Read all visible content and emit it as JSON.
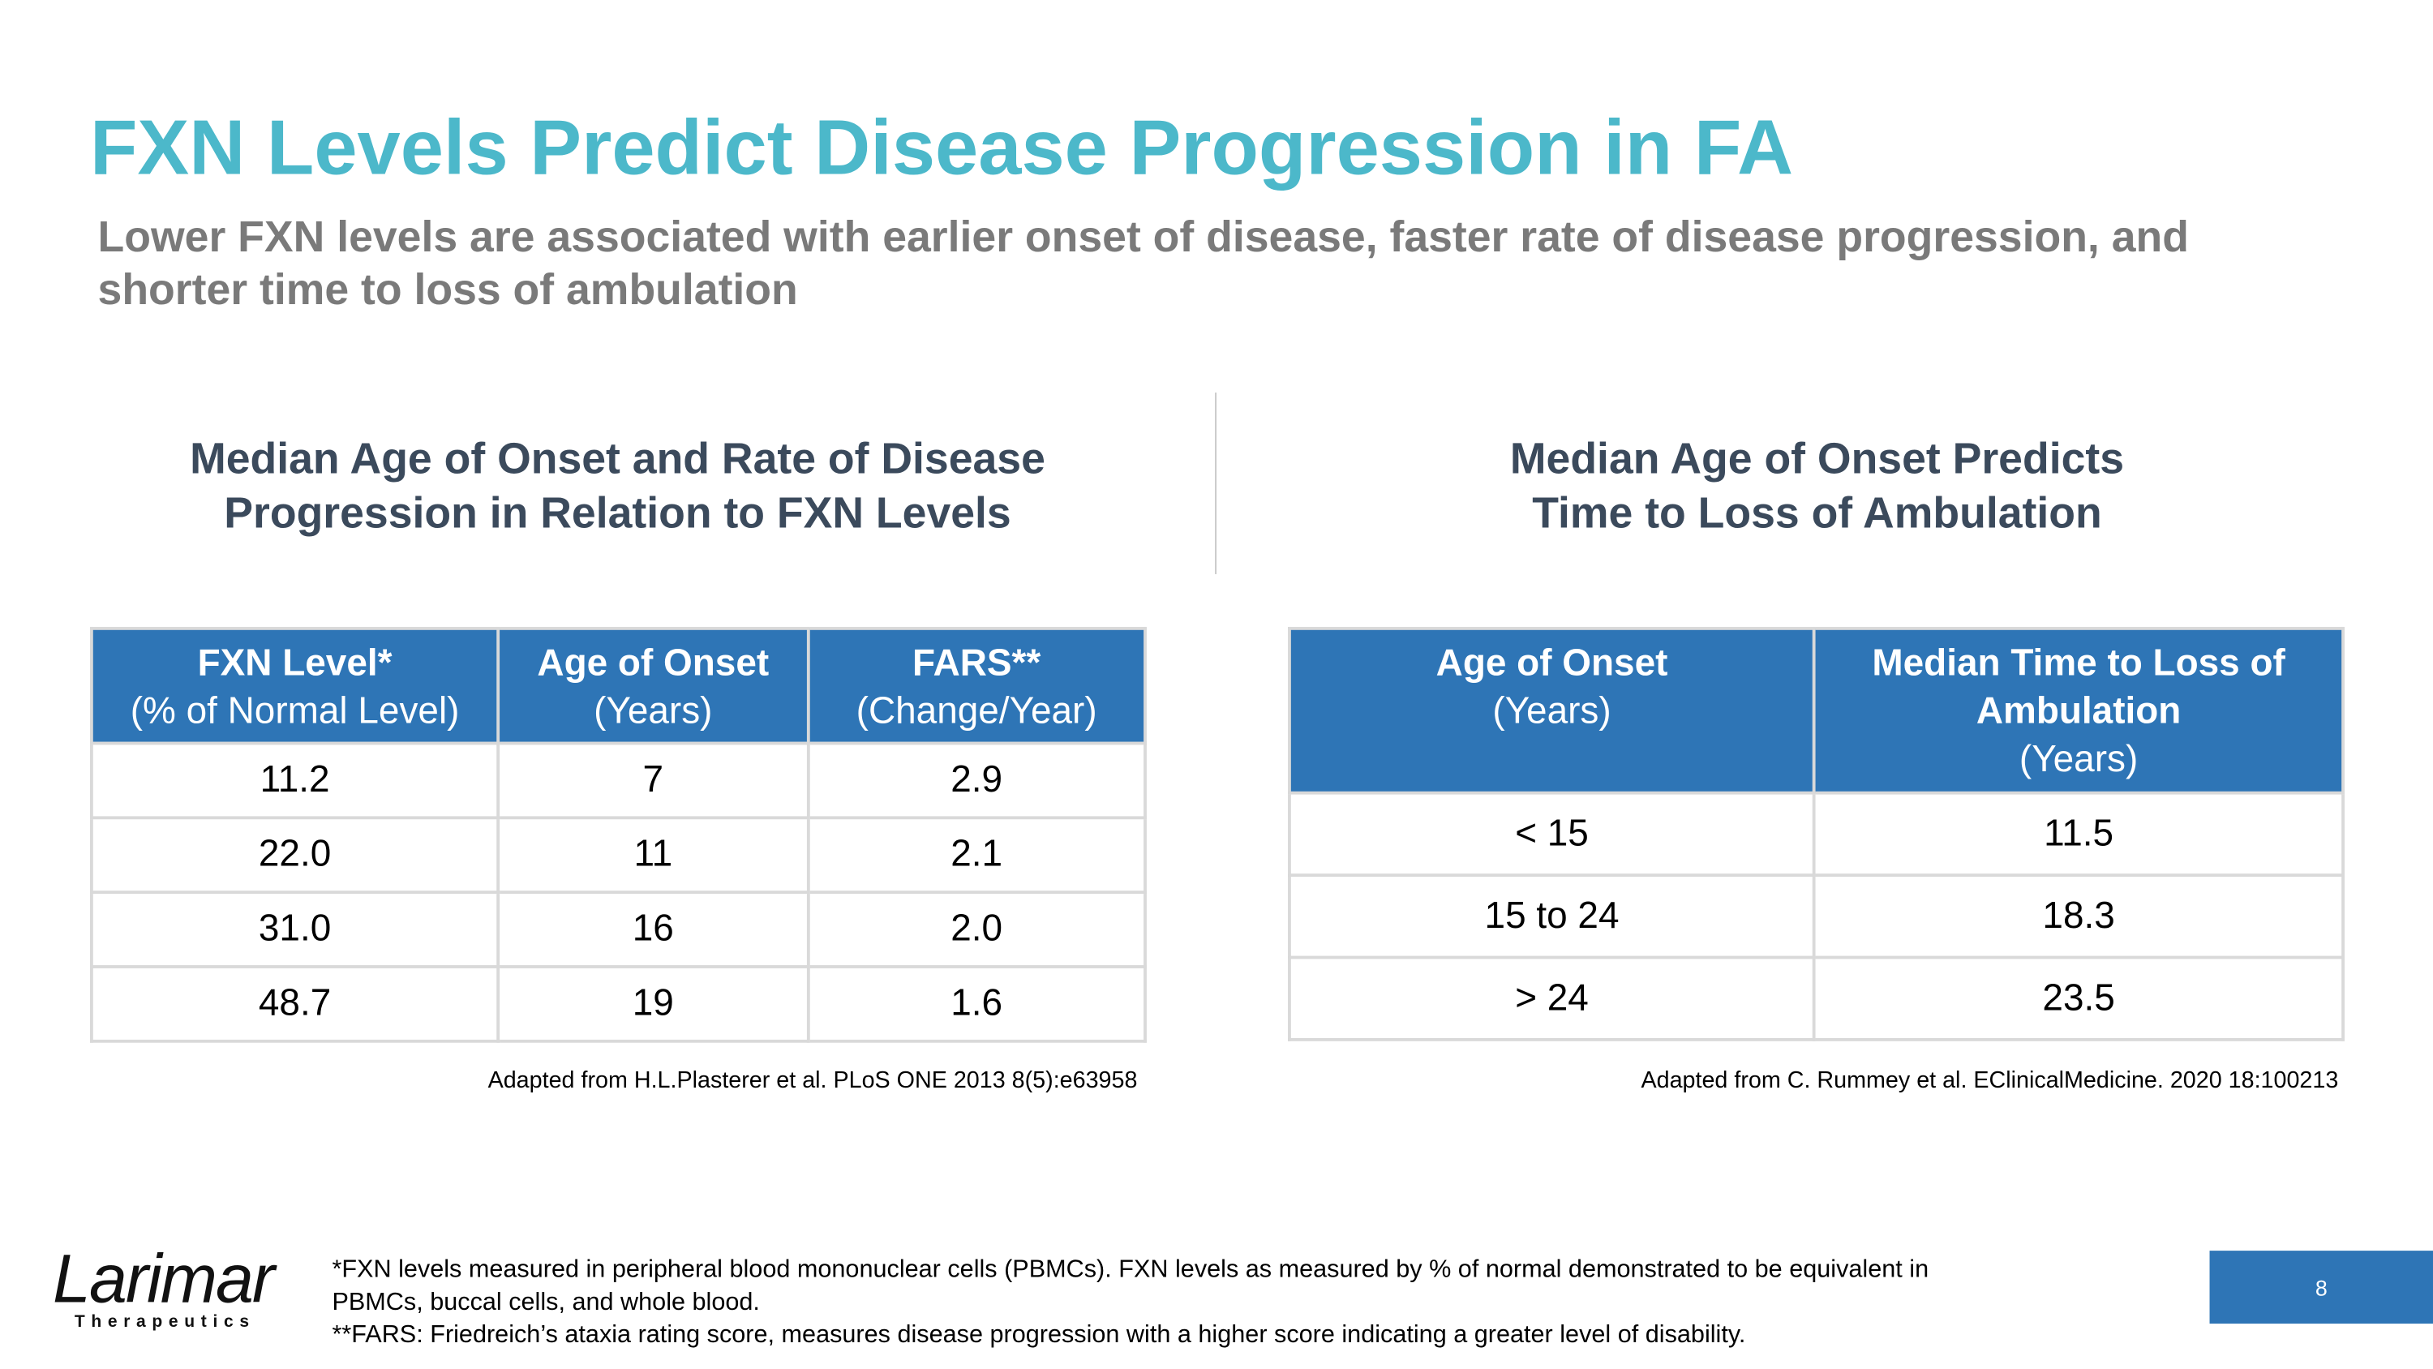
{
  "title": "FXN Levels Predict Disease Progression in FA",
  "subtitle": "Lower FXN levels are associated with earlier onset of disease, faster rate of disease progression, and shorter time to loss of ambulation",
  "left_panel": {
    "heading": [
      "Median Age of Onset and Rate of Disease",
      "Progression in Relation to FXN Levels"
    ],
    "table": {
      "headers": [
        {
          "title": "FXN Level*",
          "sub": "(% of Normal Level)"
        },
        {
          "title": "Age of Onset",
          "sub": "(Years)"
        },
        {
          "title": "FARS**",
          "sub": "(Change/Year)"
        }
      ],
      "rows": [
        [
          "11.2",
          "7",
          "2.9"
        ],
        [
          "22.0",
          "11",
          "2.1"
        ],
        [
          "31.0",
          "16",
          "2.0"
        ],
        [
          "48.7",
          "19",
          "1.6"
        ]
      ]
    },
    "source": "Adapted from H.L.Plasterer et al. PLoS ONE 2013 8(5):e63958"
  },
  "right_panel": {
    "heading": [
      "Median Age of Onset Predicts",
      "Time to Loss of Ambulation"
    ],
    "table": {
      "headers": [
        {
          "title": "Age of Onset",
          "sub": "(Years)"
        },
        {
          "title": "Median Time to Loss of Ambulation",
          "sub": "(Years)"
        }
      ],
      "rows": [
        [
          "< 15",
          "11.5"
        ],
        [
          "15 to 24",
          "18.3"
        ],
        [
          "> 24",
          "23.5"
        ]
      ]
    },
    "source": "Adapted from C. Rummey et al. EClinicalMedicine. 2020 18:100213"
  },
  "footnotes": [
    "*FXN levels measured in peripheral blood mononuclear cells (PBMCs). FXN levels as measured by % of normal demonstrated to be equivalent in PBMCs, buccal cells, and whole blood.",
    "**FARS: Friedreich’s ataxia rating score, measures disease progression with a higher score indicating a greater level of disability."
  ],
  "logo": {
    "name": "Larimar",
    "tagline": "Therapeutics"
  },
  "page_number": "8"
}
